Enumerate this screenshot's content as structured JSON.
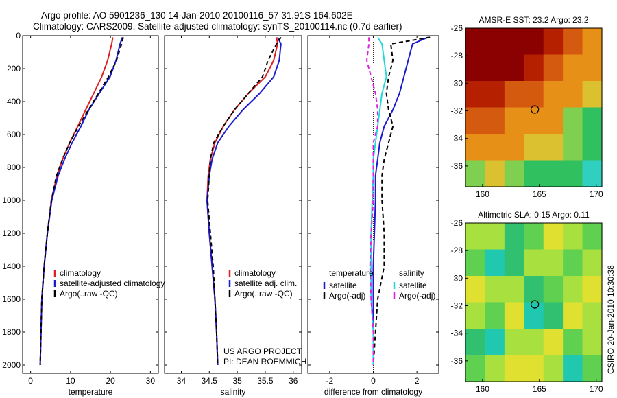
{
  "figure": {
    "title_line1": "Argo profile: AO 5901236_130 14-Jan-2010 20100116_57 31.91S 164.602E",
    "title_line2": "Climatology: CARS2009. Satellite-adjusted climatology: synTS_20100114.nc (0.7d earlier)",
    "project_line1": "US ARGO PROJECT",
    "project_line2": "PI: DEAN ROEMMICH",
    "side_label": "CSIRO 20-Jan-2010 10:30:38"
  },
  "colors": {
    "climatology": "#e02020",
    "satellite": "#1a1ad0",
    "argo": "#000000",
    "sal_satellite": "#22d8d8",
    "sal_argo": "#e020e0"
  },
  "chart_data": [
    {
      "type": "line",
      "panel": "temperature",
      "xlabel": "temperature",
      "ylabel": "",
      "xlim": [
        -2,
        32
      ],
      "ylim": [
        2050,
        0
      ],
      "xticks": [
        0,
        10,
        20,
        30
      ],
      "yticks": [
        0,
        200,
        400,
        600,
        800,
        1000,
        1200,
        1400,
        1600,
        1800,
        2000
      ],
      "legend": [
        "climatology",
        "satellite-adjusted climatology",
        "Argo(..raw -QC)"
      ],
      "legend_placement": "lower-center",
      "series": [
        {
          "name": "climatology",
          "color_key": "climatology",
          "style": "solid",
          "x": [
            20.6,
            20.3,
            19.3,
            17.8,
            15.8,
            13.8,
            11.8,
            9.8,
            8.0,
            6.6,
            5.2,
            4.2,
            3.4,
            2.8,
            2.6,
            2.4
          ],
          "y": [
            10,
            50,
            150,
            250,
            350,
            450,
            550,
            650,
            750,
            850,
            1000,
            1200,
            1400,
            1600,
            1800,
            2000
          ]
        },
        {
          "name": "satellite-adjusted climatology",
          "color_key": "satellite",
          "style": "solid",
          "x": [
            23.0,
            22.4,
            21.4,
            19.9,
            17.2,
            14.6,
            12.6,
            10.4,
            8.5,
            6.9,
            5.3,
            4.2,
            3.4,
            2.8,
            2.6,
            2.4
          ],
          "y": [
            10,
            50,
            150,
            250,
            350,
            450,
            550,
            650,
            750,
            850,
            1000,
            1200,
            1400,
            1600,
            1800,
            2000
          ]
        },
        {
          "name": "Argo(..raw -QC)",
          "color_key": "argo",
          "style": "dashed",
          "x": [
            23.2,
            22.8,
            21.5,
            19.5,
            17.0,
            14.5,
            12.0,
            9.8,
            8.0,
            6.5,
            5.2,
            4.2,
            3.4,
            2.8,
            2.6,
            2.4
          ],
          "y": [
            10,
            50,
            150,
            250,
            350,
            450,
            550,
            650,
            750,
            850,
            1000,
            1200,
            1400,
            1600,
            1800,
            2000
          ]
        }
      ]
    },
    {
      "type": "line",
      "panel": "salinity",
      "xlabel": "salinity",
      "ylabel": "",
      "xlim": [
        33.7,
        36.15
      ],
      "ylim": [
        2050,
        0
      ],
      "xticks": [
        34,
        34.5,
        35,
        35.5,
        36
      ],
      "yticks": [
        0,
        200,
        400,
        600,
        800,
        1000,
        1200,
        1400,
        1600,
        1800,
        2000
      ],
      "legend": [
        "climatology",
        "satellite adj. clim.",
        "Argo(..raw -QC)"
      ],
      "legend_placement": "lower-right",
      "series": [
        {
          "name": "climatology",
          "color_key": "climatology",
          "style": "solid",
          "x": [
            35.7,
            35.72,
            35.65,
            35.5,
            35.2,
            34.95,
            34.75,
            34.6,
            34.52,
            34.48,
            34.46,
            34.5,
            34.55,
            34.6,
            34.63,
            34.65
          ],
          "y": [
            10,
            50,
            150,
            250,
            350,
            450,
            550,
            650,
            750,
            850,
            1000,
            1200,
            1400,
            1600,
            1800,
            2000
          ]
        },
        {
          "name": "satellite adj. clim.",
          "color_key": "satellite",
          "style": "solid",
          "x": [
            35.72,
            35.78,
            35.75,
            35.65,
            35.4,
            35.1,
            34.85,
            34.65,
            34.55,
            34.5,
            34.46,
            34.5,
            34.55,
            34.6,
            34.63,
            34.65
          ],
          "y": [
            10,
            50,
            150,
            250,
            350,
            450,
            550,
            650,
            750,
            850,
            1000,
            1200,
            1400,
            1600,
            1800,
            2000
          ]
        },
        {
          "name": "Argo(..raw -QC)",
          "color_key": "argo",
          "style": "dashed",
          "x": [
            35.78,
            35.7,
            35.55,
            35.45,
            35.2,
            34.95,
            34.75,
            34.58,
            34.52,
            34.5,
            34.47,
            34.52,
            34.57,
            34.6,
            34.63,
            34.65
          ],
          "y": [
            10,
            50,
            150,
            250,
            350,
            450,
            550,
            650,
            750,
            850,
            1000,
            1200,
            1400,
            1600,
            1800,
            2000
          ]
        }
      ]
    },
    {
      "type": "line",
      "panel": "difference",
      "xlabel": "difference from climatology",
      "ylabel": "",
      "xlim": [
        -3.0,
        3.0
      ],
      "ylim": [
        2050,
        0
      ],
      "xticks": [
        -2,
        0,
        2
      ],
      "yticks": [
        0,
        200,
        400,
        600,
        800,
        1000,
        1200,
        1400,
        1600,
        1800,
        2000
      ],
      "legend_temperature_header": "temperature",
      "legend_salinity_header": "salinity",
      "legend": [
        "satellite",
        "Argo(-adj)",
        "satellite",
        "Argo(-adj)"
      ],
      "legend_placement": "lower-center",
      "series": [
        {
          "name": "satellite",
          "color_key": "satellite",
          "style": "solid",
          "x": [
            2.5,
            1.8,
            1.6,
            1.4,
            1.2,
            0.9,
            0.5,
            0.3,
            0.2,
            0.1,
            0.1,
            0.05,
            0.0,
            0.0,
            0.0,
            0.0
          ],
          "y": [
            10,
            50,
            150,
            250,
            350,
            450,
            550,
            650,
            750,
            850,
            1000,
            1200,
            1400,
            1600,
            1800,
            2000
          ]
        },
        {
          "name": "Argo(-adj)",
          "color_key": "argo",
          "style": "dashed",
          "x": [
            2.6,
            0.8,
            0.9,
            0.7,
            0.6,
            0.7,
            0.9,
            0.7,
            0.5,
            0.4,
            0.4,
            0.5,
            0.5,
            0.2,
            0.1,
            0.0
          ],
          "y": [
            10,
            50,
            150,
            250,
            350,
            450,
            550,
            650,
            750,
            850,
            1000,
            1200,
            1400,
            1600,
            1800,
            2000
          ]
        },
        {
          "name": "satellite",
          "color_key": "sal_satellite",
          "style": "solid",
          "x": [
            0.2,
            0.4,
            0.5,
            0.6,
            0.4,
            0.3,
            0.2,
            0.1,
            0.0,
            0.0,
            -0.05,
            -0.1,
            -0.1,
            -0.1,
            0.0,
            0.0
          ],
          "y": [
            10,
            50,
            150,
            250,
            350,
            450,
            550,
            650,
            750,
            850,
            1000,
            1200,
            1400,
            1600,
            1800,
            2000
          ]
        },
        {
          "name": "Argo(-adj)",
          "color_key": "sal_argo",
          "style": "dashed",
          "x": [
            -0.2,
            -0.2,
            -0.3,
            -0.1,
            0.1,
            0.2,
            0.2,
            0.0,
            0.0,
            0.0,
            0.0,
            -0.1,
            -0.15,
            -0.1,
            0.0,
            0.0
          ],
          "y": [
            10,
            50,
            150,
            250,
            350,
            450,
            550,
            650,
            750,
            850,
            1000,
            1200,
            1400,
            1600,
            1800,
            2000
          ]
        }
      ]
    },
    {
      "type": "heatmap",
      "panel": "sst_map",
      "title": "AMSR-E SST: 23.2 Argo: 23.2",
      "xlim": [
        158.5,
        170.5
      ],
      "ylim": [
        -37.5,
        -26
      ],
      "xticks": [
        160,
        165,
        170
      ],
      "yticks": [
        -26,
        -28,
        -30,
        -32,
        -34,
        -36
      ],
      "marker": {
        "lon": 164.6,
        "lat": -31.9
      },
      "palette": [
        "#8b0000",
        "#b42000",
        "#d45a10",
        "#e69018",
        "#dbc030",
        "#7fd050",
        "#30c060",
        "#30d0c0"
      ],
      "grid_rows": 6,
      "grid_cols": 7,
      "cells": [
        [
          0,
          0,
          0,
          0,
          1,
          2,
          3
        ],
        [
          0,
          0,
          0,
          1,
          2,
          3,
          3
        ],
        [
          1,
          1,
          2,
          2,
          3,
          3,
          4
        ],
        [
          2,
          2,
          3,
          3,
          3,
          5,
          6
        ],
        [
          3,
          3,
          3,
          4,
          4,
          5,
          6
        ],
        [
          5,
          4,
          5,
          6,
          6,
          6,
          7
        ]
      ]
    },
    {
      "type": "heatmap",
      "panel": "sla_map",
      "title": "Altimetric SLA: 0.15 Argo: 0.11",
      "xlim": [
        158.5,
        170.5
      ],
      "ylim": [
        -37.5,
        -26
      ],
      "xticks": [
        160,
        165,
        170
      ],
      "yticks": [
        -26,
        -28,
        -30,
        -32,
        -34,
        -36
      ],
      "marker": {
        "lon": 164.6,
        "lat": -31.9
      },
      "palette": [
        "#20c8b0",
        "#30c070",
        "#60d050",
        "#a8e040",
        "#e0e030",
        "#f0d020"
      ],
      "grid_rows": 6,
      "grid_cols": 7,
      "cells": [
        [
          3,
          3,
          1,
          2,
          4,
          3,
          2
        ],
        [
          2,
          0,
          1,
          3,
          3,
          2,
          3
        ],
        [
          4,
          3,
          3,
          1,
          2,
          3,
          4
        ],
        [
          3,
          2,
          4,
          0,
          1,
          4,
          3
        ],
        [
          1,
          0,
          3,
          3,
          4,
          2,
          3
        ],
        [
          2,
          3,
          4,
          4,
          3,
          0,
          2
        ]
      ]
    }
  ]
}
